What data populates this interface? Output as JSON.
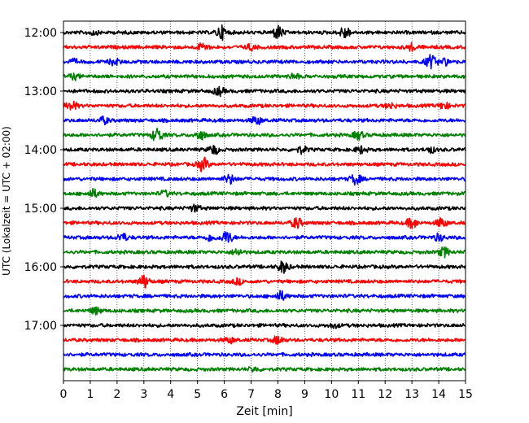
{
  "chart_data": {
    "type": "line",
    "title": "",
    "xlabel": "Zeit  [min]",
    "ylabel": "UTC (Lokalzeit = UTC + 02:00)",
    "xlim": [
      0,
      15
    ],
    "x_ticks": [
      0,
      1,
      2,
      3,
      4,
      5,
      6,
      7,
      8,
      9,
      10,
      11,
      12,
      13,
      14,
      15
    ],
    "x_tick_labels": [
      "0",
      "1",
      "2",
      "3",
      "4",
      "5",
      "6",
      "7",
      "8",
      "9",
      "10",
      "11",
      "12",
      "13",
      "14",
      "15"
    ],
    "y_tick_labels": [
      "12:00",
      "13:00",
      "14:00",
      "15:00",
      "16:00",
      "17:00"
    ],
    "trace_interval_min": 15,
    "grid": "vertical-dotted",
    "colors": [
      "#000000",
      "#ff0000",
      "#0000ff",
      "#008000"
    ],
    "series": [
      {
        "start": "12:00",
        "events": [
          [
            5.9,
            1.0
          ],
          [
            8.0,
            1.0
          ],
          [
            10.5,
            0.9
          ],
          [
            1.1,
            0.3
          ]
        ]
      },
      {
        "start": "12:15",
        "events": [
          [
            5.2,
            0.6
          ],
          [
            7.0,
            0.4
          ],
          [
            13.0,
            0.5
          ]
        ]
      },
      {
        "start": "12:30",
        "events": [
          [
            1.9,
            0.5
          ],
          [
            13.7,
            1.0
          ],
          [
            14.2,
            0.5
          ],
          [
            0.4,
            0.3
          ]
        ]
      },
      {
        "start": "12:45",
        "events": [
          [
            0.4,
            0.4
          ],
          [
            8.6,
            0.4
          ]
        ]
      },
      {
        "start": "13:00",
        "events": [
          [
            5.8,
            0.6
          ]
        ]
      },
      {
        "start": "13:15",
        "events": [
          [
            0.3,
            0.7
          ],
          [
            12.2,
            0.4
          ],
          [
            14.2,
            0.5
          ]
        ]
      },
      {
        "start": "13:30",
        "events": [
          [
            1.5,
            0.5
          ],
          [
            7.2,
            0.6
          ]
        ]
      },
      {
        "start": "13:45",
        "events": [
          [
            3.5,
            1.1
          ],
          [
            5.1,
            0.7
          ],
          [
            11.0,
            0.6
          ]
        ]
      },
      {
        "start": "14:00",
        "events": [
          [
            5.6,
            0.7
          ],
          [
            8.9,
            0.5
          ],
          [
            11.1,
            0.5
          ],
          [
            13.7,
            0.4
          ]
        ]
      },
      {
        "start": "14:15",
        "events": [
          [
            5.2,
            1.0
          ]
        ]
      },
      {
        "start": "14:30",
        "events": [
          [
            6.2,
            0.7
          ],
          [
            10.9,
            0.8
          ]
        ]
      },
      {
        "start": "14:45",
        "events": [
          [
            1.1,
            0.6
          ],
          [
            3.8,
            0.4
          ]
        ]
      },
      {
        "start": "15:00",
        "events": [
          [
            4.9,
            0.5
          ]
        ]
      },
      {
        "start": "15:15",
        "events": [
          [
            8.7,
            0.8
          ],
          [
            13.0,
            0.8
          ],
          [
            14.1,
            0.7
          ]
        ]
      },
      {
        "start": "15:30",
        "events": [
          [
            2.2,
            0.6
          ],
          [
            5.5,
            0.5
          ],
          [
            6.1,
            1.0
          ],
          [
            14.0,
            0.5
          ]
        ]
      },
      {
        "start": "15:45",
        "events": [
          [
            6.5,
            0.5
          ],
          [
            14.2,
            0.7
          ]
        ]
      },
      {
        "start": "16:00",
        "events": [
          [
            8.2,
            0.9
          ]
        ]
      },
      {
        "start": "16:15",
        "events": [
          [
            3.0,
            1.0
          ],
          [
            6.5,
            0.4
          ]
        ]
      },
      {
        "start": "16:30",
        "events": [
          [
            8.1,
            0.7
          ]
        ]
      },
      {
        "start": "16:45",
        "events": [
          [
            1.2,
            0.5
          ]
        ]
      },
      {
        "start": "17:00",
        "events": [
          [
            10.1,
            0.3
          ]
        ]
      },
      {
        "start": "17:15",
        "events": [
          [
            8.0,
            0.6
          ],
          [
            6.2,
            0.4
          ]
        ]
      },
      {
        "start": "17:30",
        "events": []
      },
      {
        "start": "17:45",
        "events": [
          [
            7.1,
            0.3
          ]
        ]
      }
    ]
  }
}
